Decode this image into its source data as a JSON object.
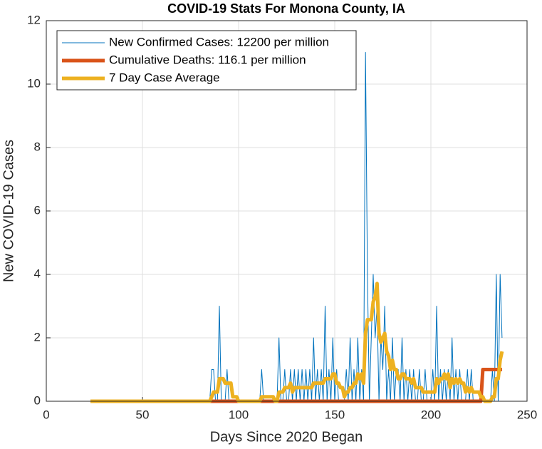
{
  "chart_data": {
    "type": "line",
    "title": "COVID-19 Stats For Monona County, IA",
    "x_label": "Days Since 2020 Began",
    "y_label": "New COVID-19 Cases",
    "xlim": [
      0,
      250
    ],
    "xticks": [
      0,
      50,
      100,
      150,
      200,
      250
    ],
    "ylim": [
      0,
      12
    ],
    "yticks": [
      0,
      2,
      4,
      6,
      8,
      10,
      12
    ],
    "grid": true,
    "legend": "upper left",
    "x": [
      23,
      24,
      25,
      26,
      27,
      28,
      29,
      30,
      31,
      32,
      33,
      34,
      35,
      36,
      37,
      38,
      39,
      40,
      41,
      42,
      43,
      44,
      45,
      46,
      47,
      48,
      49,
      50,
      51,
      52,
      53,
      54,
      55,
      56,
      57,
      58,
      59,
      60,
      61,
      62,
      63,
      64,
      65,
      66,
      67,
      68,
      69,
      70,
      71,
      72,
      73,
      74,
      75,
      76,
      77,
      78,
      79,
      80,
      81,
      82,
      83,
      84,
      85,
      86,
      87,
      88,
      89,
      90,
      91,
      92,
      93,
      94,
      95,
      96,
      97,
      98,
      99,
      100,
      101,
      102,
      103,
      104,
      105,
      106,
      107,
      108,
      109,
      110,
      111,
      112,
      113,
      114,
      115,
      116,
      117,
      118,
      119,
      120,
      121,
      122,
      123,
      124,
      125,
      126,
      127,
      128,
      129,
      130,
      131,
      132,
      133,
      134,
      135,
      136,
      137,
      138,
      139,
      140,
      141,
      142,
      143,
      144,
      145,
      146,
      147,
      148,
      149,
      150,
      151,
      152,
      153,
      154,
      155,
      156,
      157,
      158,
      159,
      160,
      161,
      162,
      163,
      164,
      165,
      166,
      167,
      168,
      169,
      170,
      171,
      172,
      173,
      174,
      175,
      176,
      177,
      178,
      179,
      180,
      181,
      182,
      183,
      184,
      185,
      186,
      187,
      188,
      189,
      190,
      191,
      192,
      193,
      194,
      195,
      196,
      197,
      198,
      199,
      200,
      201,
      202,
      203,
      204,
      205,
      206,
      207,
      208,
      209,
      210,
      211,
      212,
      213,
      214,
      215,
      216,
      217,
      218,
      219,
      220,
      221,
      222,
      223,
      224,
      225,
      226,
      227,
      228,
      229,
      230,
      231,
      232,
      233,
      234,
      235,
      236,
      237
    ],
    "series": [
      {
        "name": "New Confirmed Cases: 12200 per million",
        "color": "#0072BD",
        "width": 1,
        "values": [
          0,
          0,
          0,
          0,
          0,
          0,
          0,
          0,
          0,
          0,
          0,
          0,
          0,
          0,
          0,
          0,
          0,
          0,
          0,
          0,
          0,
          0,
          0,
          0,
          0,
          0,
          0,
          0,
          0,
          0,
          0,
          0,
          0,
          0,
          0,
          0,
          0,
          0,
          0,
          0,
          0,
          0,
          0,
          0,
          0,
          0,
          0,
          0,
          0,
          0,
          0,
          0,
          0,
          0,
          0,
          0,
          0,
          0,
          0,
          0,
          0,
          0,
          0,
          1,
          1,
          0,
          0,
          3,
          0,
          0,
          0,
          1,
          0,
          0,
          0,
          0,
          0,
          0,
          0,
          0,
          0,
          0,
          0,
          0,
          0,
          0,
          0,
          0,
          0,
          1,
          0,
          0,
          0,
          0,
          0,
          0,
          0,
          0,
          2,
          0,
          0,
          1,
          0,
          0,
          1,
          0,
          1,
          0,
          1,
          0,
          1,
          0,
          1,
          0,
          1,
          0,
          2,
          0,
          1,
          0,
          1,
          0,
          3,
          0,
          1,
          0,
          2,
          0,
          1,
          0,
          0,
          0,
          0,
          1,
          0,
          2,
          0,
          1,
          0,
          2,
          0,
          1,
          0,
          11,
          4,
          0,
          2,
          4,
          2,
          3,
          0,
          2,
          1,
          3,
          0,
          1,
          0,
          2,
          0,
          1,
          1,
          0,
          2,
          0,
          1,
          0,
          1,
          0,
          1,
          0,
          0,
          1,
          0,
          0,
          1,
          0,
          0,
          0,
          1,
          0,
          3,
          0,
          1,
          0,
          1,
          0,
          1,
          0,
          2,
          0,
          1,
          0,
          1,
          0,
          0,
          0,
          1,
          0,
          1,
          0,
          0,
          0,
          0,
          0,
          0,
          0,
          0,
          0,
          0,
          1,
          0,
          4,
          0,
          4,
          2
        ]
      },
      {
        "name": "Cumulative Deaths: 116.1 per million",
        "color": "#D95319",
        "width": 5,
        "values": [
          0,
          0,
          0,
          0,
          0,
          0,
          0,
          0,
          0,
          0,
          0,
          0,
          0,
          0,
          0,
          0,
          0,
          0,
          0,
          0,
          0,
          0,
          0,
          0,
          0,
          0,
          0,
          0,
          0,
          0,
          0,
          0,
          0,
          0,
          0,
          0,
          0,
          0,
          0,
          0,
          0,
          0,
          0,
          0,
          0,
          0,
          0,
          0,
          0,
          0,
          0,
          0,
          0,
          0,
          0,
          0,
          0,
          0,
          0,
          0,
          0,
          0,
          0,
          0,
          0,
          0,
          0,
          0,
          0,
          0,
          0,
          0,
          0,
          0,
          0,
          0,
          0,
          0,
          0,
          0,
          0,
          0,
          0,
          0,
          0,
          0,
          0,
          0,
          0,
          0,
          0,
          0,
          0,
          0,
          0,
          0,
          0,
          0,
          0,
          0,
          0,
          0,
          0,
          0,
          0,
          0,
          0,
          0,
          0,
          0,
          0,
          0,
          0,
          0,
          0,
          0,
          0,
          0,
          0,
          0,
          0,
          0,
          0,
          0,
          0,
          0,
          0,
          0,
          0,
          0,
          0,
          0,
          0,
          0,
          0,
          0,
          0,
          0,
          0,
          0,
          0,
          0,
          0,
          0,
          0,
          0,
          0,
          0,
          0,
          0,
          0,
          0,
          0,
          0,
          0,
          0,
          0,
          0,
          0,
          0,
          0,
          0,
          0,
          0,
          0,
          0,
          0,
          0,
          0,
          0,
          0,
          0,
          0,
          0,
          0,
          0,
          0,
          0,
          0,
          0,
          0,
          0,
          0,
          0,
          0,
          0,
          0,
          0,
          0,
          0,
          0,
          0,
          0,
          0,
          0,
          0,
          0,
          0,
          0,
          0,
          0,
          0,
          0,
          0,
          1,
          1,
          1,
          1,
          1,
          1,
          1,
          1,
          1,
          1,
          1
        ]
      },
      {
        "name": "7 Day Case Average",
        "color": "#EDB120",
        "width": 5,
        "values": [
          0,
          0,
          0,
          0,
          0,
          0,
          0,
          0,
          0,
          0,
          0,
          0,
          0,
          0,
          0,
          0,
          0,
          0,
          0,
          0,
          0,
          0,
          0,
          0,
          0,
          0,
          0,
          0,
          0,
          0,
          0,
          0,
          0,
          0,
          0,
          0,
          0,
          0,
          0,
          0,
          0,
          0,
          0,
          0,
          0,
          0,
          0,
          0,
          0,
          0,
          0,
          0,
          0,
          0,
          0,
          0,
          0,
          0,
          0,
          0,
          0,
          0,
          0,
          0.14,
          0.29,
          0.29,
          0.29,
          0.71,
          0.71,
          0.71,
          0.57,
          0.57,
          0.57,
          0.57,
          0.14,
          0.14,
          0.14,
          0,
          0,
          0,
          0,
          0,
          0,
          0,
          0,
          0,
          0,
          0,
          0,
          0.14,
          0.14,
          0.14,
          0.14,
          0.14,
          0.14,
          0.14,
          0,
          0,
          0.29,
          0.29,
          0.29,
          0.43,
          0.43,
          0.43,
          0.57,
          0.29,
          0.43,
          0.43,
          0.43,
          0.43,
          0.43,
          0.43,
          0.43,
          0.43,
          0.43,
          0.43,
          0.57,
          0.57,
          0.57,
          0.57,
          0.57,
          0.57,
          0.71,
          0.71,
          0.71,
          0.71,
          0.86,
          0.86,
          0.57,
          0.57,
          0.43,
          0.43,
          0.14,
          0.29,
          0.29,
          0.43,
          0.43,
          0.57,
          0.57,
          0.86,
          0.71,
          0.86,
          0.57,
          2.14,
          2.57,
          2.57,
          2.57,
          3.14,
          3.29,
          3.71,
          2.14,
          1.86,
          2,
          2.14,
          1.57,
          1.43,
          1,
          1.29,
          1,
          1,
          0.71,
          0.71,
          0.86,
          0.86,
          0.71,
          0.71,
          0.71,
          0.57,
          0.71,
          0.43,
          0.43,
          0.43,
          0.43,
          0.29,
          0.29,
          0.29,
          0.29,
          0.29,
          0.29,
          0.29,
          0.71,
          0.57,
          0.71,
          0.71,
          0.86,
          0.71,
          0.86,
          0.43,
          0.71,
          0.57,
          0.71,
          0.57,
          0.71,
          0.57,
          0.57,
          0.29,
          0.43,
          0.29,
          0.43,
          0.29,
          0.29,
          0.29,
          0.29,
          0.14,
          0.14,
          0,
          0,
          0,
          0,
          0.14,
          0.14,
          0.71,
          0.71,
          1.29,
          1.57
        ]
      }
    ]
  }
}
